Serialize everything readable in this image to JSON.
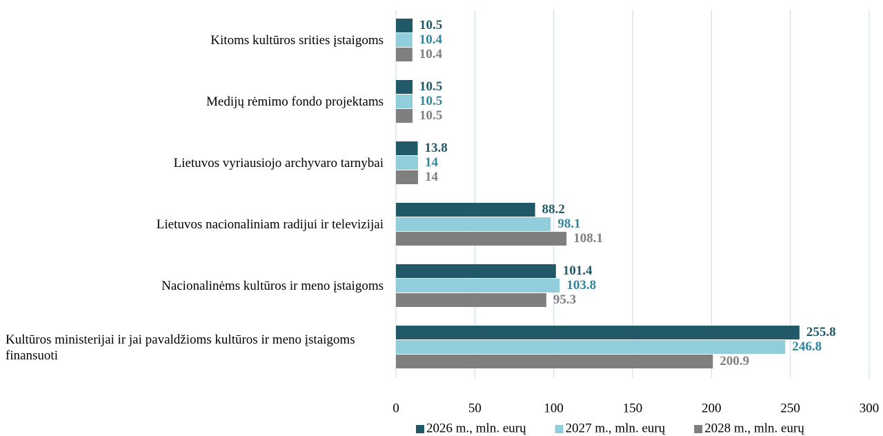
{
  "chart_data": {
    "type": "hbar",
    "categories": [
      "Kitoms kultūros srities įstaigoms",
      "Medijų rėmimo fondo projektams",
      "Lietuvos vyriausiojo archyvaro tarnybai",
      "Lietuvos nacionaliniam radijui ir televizijai",
      "Nacionalinėms kultūros ir meno įstaigoms",
      "Kultūros ministerijai ir jai pavaldžioms kultūros ir meno įstaigoms finansuoti"
    ],
    "series": [
      {
        "name": "2026 m., mln. eurų",
        "color": "#215968",
        "label_color": "#215968",
        "values": [
          10.5,
          10.5,
          13.8,
          88.2,
          101.4,
          255.8
        ]
      },
      {
        "name": "2027 m., mln. eurų",
        "color": "#92cddc",
        "label_color": "#31859c",
        "values": [
          10.4,
          10.5,
          14,
          98.1,
          103.8,
          246.8
        ]
      },
      {
        "name": "2028 m., mln. eurų",
        "color": "#7f7f7f",
        "label_color": "#7f7f7f",
        "values": [
          10.4,
          10.5,
          14,
          108.1,
          95.3,
          200.9
        ]
      }
    ],
    "xlim": [
      0,
      300
    ],
    "xticks": [
      0,
      50,
      100,
      150,
      200,
      250,
      300
    ],
    "grid": true,
    "legend": "bottom"
  }
}
